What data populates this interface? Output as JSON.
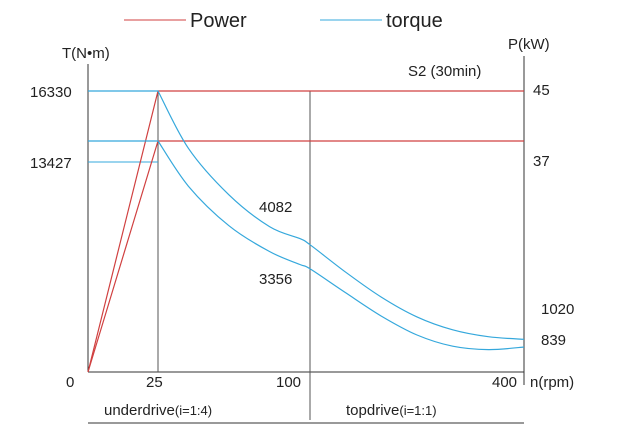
{
  "chart_data": {
    "type": "line",
    "legend": {
      "placement": "top",
      "entries": [
        {
          "name": "Power",
          "color": "#d04040"
        },
        {
          "name": "torque",
          "color": "#35a8dc"
        }
      ]
    },
    "y_left_label": "T(N•m)",
    "y_right_label": "P(kW)",
    "x_label": "n(rpm)",
    "duty_label": "S2 (30min)",
    "x_origin_label": "0",
    "x_ticks": [
      {
        "value": 25,
        "label": "25"
      },
      {
        "value": 100,
        "label": "100"
      },
      {
        "value": 400,
        "label": "400"
      }
    ],
    "y_left_ticks": [
      {
        "value": 16330,
        "label": "16330"
      },
      {
        "value": 13427,
        "label": "13427"
      }
    ],
    "y_right_ticks": [
      {
        "value": 45,
        "label": "45"
      },
      {
        "value": 37,
        "label": "37"
      }
    ],
    "series": [
      {
        "name": "Power",
        "color": "#d04040",
        "axis": "right",
        "points": [
          [
            0,
            0
          ],
          [
            25,
            45
          ],
          [
            400,
            45
          ]
        ]
      },
      {
        "name": "Power",
        "color": "#d04040",
        "axis": "right",
        "points": [
          [
            0,
            0
          ],
          [
            25,
            37
          ],
          [
            400,
            37
          ]
        ]
      },
      {
        "name": "torque",
        "color": "#35a8dc",
        "axis": "left",
        "points": [
          [
            0,
            16330
          ],
          [
            25,
            16330
          ],
          [
            40,
            13000
          ],
          [
            60,
            10300
          ],
          [
            80,
            8450
          ],
          [
            95,
            7750
          ],
          [
            100,
            7400
          ],
          [
            150,
            5800
          ],
          [
            200,
            4350
          ],
          [
            250,
            3200
          ],
          [
            300,
            2450
          ],
          [
            350,
            2050
          ],
          [
            400,
            1900
          ]
        ]
      },
      {
        "name": "torque",
        "color": "#35a8dc",
        "axis": "left",
        "points": [
          [
            0,
            13427
          ],
          [
            25,
            13427
          ],
          [
            40,
            10800
          ],
          [
            60,
            8500
          ],
          [
            80,
            7000
          ],
          [
            95,
            6250
          ],
          [
            100,
            6000
          ],
          [
            150,
            4600
          ],
          [
            200,
            3250
          ],
          [
            250,
            2150
          ],
          [
            300,
            1500
          ],
          [
            350,
            1300
          ],
          [
            400,
            1450
          ]
        ]
      }
    ],
    "point_labels": [
      "4082",
      "3356",
      "1020",
      "839"
    ],
    "ranges": [
      {
        "label": "underdrive",
        "ratio": "(i=1:4)"
      },
      {
        "label": "topdrive",
        "ratio": "(i=1:1)"
      }
    ]
  }
}
